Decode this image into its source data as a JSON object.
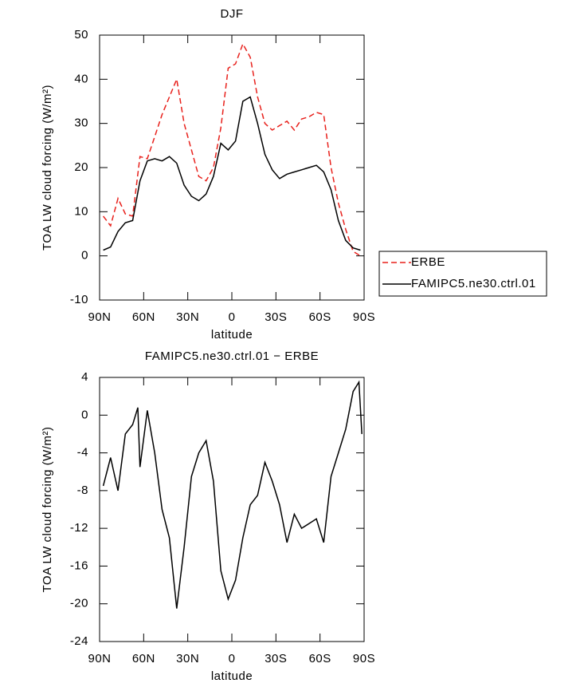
{
  "chart_data": [
    {
      "type": "line",
      "title": "DJF",
      "xlabel": "latitude",
      "ylabel": "TOA LW cloud forcing (W/m²)",
      "x": [
        87.5,
        82.5,
        77.5,
        72.5,
        67.5,
        62.5,
        57.5,
        52.5,
        47.5,
        42.5,
        37.5,
        32.5,
        27.5,
        22.5,
        17.5,
        12.5,
        7.5,
        2.5,
        -2.5,
        -7.5,
        -12.5,
        -17.5,
        -22.5,
        -27.5,
        -32.5,
        -37.5,
        -42.5,
        -47.5,
        -52.5,
        -57.5,
        -62.5,
        -67.5,
        -72.5,
        -77.5,
        -82.5,
        -87.5
      ],
      "xlim": [
        90,
        -90
      ],
      "xticks": [
        {
          "value": 90,
          "label": "90N"
        },
        {
          "value": 60,
          "label": "60N"
        },
        {
          "value": 30,
          "label": "30N"
        },
        0,
        {
          "value": -30,
          "label": "30S"
        },
        {
          "value": -60,
          "label": "60S"
        },
        {
          "value": -90,
          "label": "90S"
        }
      ],
      "ylim": [
        -10,
        50
      ],
      "yticks": [
        -10,
        0,
        10,
        20,
        30,
        40,
        50
      ],
      "legend": "outside-right",
      "series": [
        {
          "name": "ERBE",
          "color": "#e8211c",
          "dash": true,
          "values": [
            9,
            6.8,
            13,
            9.5,
            9,
            22.5,
            22,
            27,
            32,
            36,
            40,
            30,
            24,
            18,
            17,
            20,
            29,
            42.5,
            43.5,
            48,
            45,
            36,
            30,
            28.5,
            29.5,
            30.5,
            28.5,
            31,
            31.5,
            32.5,
            32,
            20,
            12,
            6,
            1,
            0
          ]
        },
        {
          "name": "FAMIPC5.ne30.ctrl.01",
          "color": "#000000",
          "dash": false,
          "values": [
            1.3,
            2,
            5.5,
            7.5,
            8,
            17,
            21.5,
            22,
            21.5,
            22.5,
            21,
            16,
            13.5,
            12.5,
            14,
            18,
            25.5,
            24,
            26,
            35,
            36,
            30,
            23,
            19.5,
            17.5,
            18.5,
            19,
            19.5,
            20,
            20.5,
            19,
            15,
            8,
            3.5,
            1.8,
            1.3
          ]
        }
      ]
    },
    {
      "type": "line",
      "title": "FAMIPC5.ne30.ctrl.01 − ERBE",
      "xlabel": "latitude",
      "ylabel": "TOA LW cloud forcing (W/m²)",
      "x": [
        87.5,
        82.5,
        77.5,
        72.5,
        67.5,
        64,
        62.5,
        57.5,
        52.5,
        47.5,
        42.5,
        37.5,
        32.5,
        27.5,
        22.5,
        17.5,
        12.5,
        7.5,
        2.5,
        -2.5,
        -7.5,
        -12.5,
        -17.5,
        -22.5,
        -27.5,
        -32.5,
        -37.5,
        -42.5,
        -47.5,
        -52.5,
        -57.5,
        -62.5,
        -67.5,
        -72.5,
        -77.5,
        -82.5,
        -86.5,
        -88.5
      ],
      "xlim": [
        90,
        -90
      ],
      "xticks": [
        {
          "value": 90,
          "label": "90N"
        },
        {
          "value": 60,
          "label": "60N"
        },
        {
          "value": 30,
          "label": "30N"
        },
        0,
        {
          "value": -30,
          "label": "30S"
        },
        {
          "value": -60,
          "label": "60S"
        },
        {
          "value": -90,
          "label": "90S"
        }
      ],
      "ylim": [
        -24,
        4
      ],
      "yticks": [
        -24,
        -20,
        -16,
        -12,
        -8,
        -4,
        0,
        4
      ],
      "color": "#000000",
      "values": [
        -7.5,
        -4.5,
        -8,
        -2,
        -1,
        0.8,
        -5.5,
        0.5,
        -4,
        -10,
        -13,
        -20.5,
        -14,
        -6.5,
        -4,
        -2.7,
        -7,
        -16.5,
        -19.5,
        -17.5,
        -13,
        -9.5,
        -8.5,
        -5,
        -7,
        -9.5,
        -13.5,
        -10.5,
        -12,
        -11.5,
        -11,
        -13.5,
        -6.5,
        -4,
        -1.5,
        2.5,
        3.5,
        -2
      ]
    }
  ]
}
